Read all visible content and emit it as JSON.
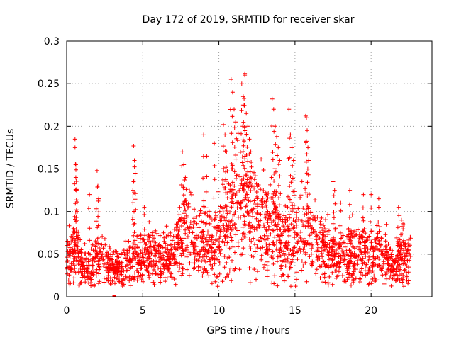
{
  "chart_data": {
    "type": "scatter",
    "title": "Day 172 of 2019, SRMTID for receiver skar",
    "xlabel": "GPS time / hours",
    "ylabel": "SRMTID / TECUs",
    "xlim": [
      0,
      24
    ],
    "ylim": [
      0,
      0.3
    ],
    "xticks": [
      0,
      5,
      10,
      15,
      20
    ],
    "xtick_labels": [
      "0",
      "5",
      "10",
      "15",
      "20"
    ],
    "yticks": [
      0,
      0.05,
      0.1,
      0.15,
      0.2,
      0.25,
      0.3
    ],
    "ytick_labels": [
      "0",
      "0.05",
      "0.1",
      "0.15",
      "0.2",
      "0.25",
      "0.3"
    ],
    "grid": true,
    "marker": "+",
    "color": "#ff0000",
    "series": [
      {
        "name": "skar",
        "trend": [
          [
            0.0,
            0.045
          ],
          [
            0.5,
            0.055
          ],
          [
            1.0,
            0.035
          ],
          [
            1.5,
            0.03
          ],
          [
            2.0,
            0.045
          ],
          [
            2.5,
            0.04
          ],
          [
            3.0,
            0.032
          ],
          [
            3.5,
            0.032
          ],
          [
            4.0,
            0.035
          ],
          [
            4.5,
            0.04
          ],
          [
            5.0,
            0.045
          ],
          [
            5.5,
            0.05
          ],
          [
            6.0,
            0.045
          ],
          [
            6.5,
            0.045
          ],
          [
            7.0,
            0.05
          ],
          [
            7.5,
            0.07
          ],
          [
            8.0,
            0.08
          ],
          [
            8.5,
            0.07
          ],
          [
            9.0,
            0.06
          ],
          [
            9.5,
            0.065
          ],
          [
            10.0,
            0.07
          ],
          [
            10.5,
            0.085
          ],
          [
            11.0,
            0.1
          ],
          [
            11.5,
            0.105
          ],
          [
            12.0,
            0.095
          ],
          [
            12.5,
            0.085
          ],
          [
            13.0,
            0.08
          ],
          [
            13.5,
            0.085
          ],
          [
            14.0,
            0.07
          ],
          [
            14.5,
            0.065
          ],
          [
            15.0,
            0.07
          ],
          [
            15.5,
            0.075
          ],
          [
            16.0,
            0.065
          ],
          [
            16.5,
            0.06
          ],
          [
            17.0,
            0.055
          ],
          [
            17.5,
            0.05
          ],
          [
            18.0,
            0.05
          ],
          [
            18.5,
            0.05
          ],
          [
            19.0,
            0.05
          ],
          [
            19.5,
            0.05
          ],
          [
            20.0,
            0.045
          ],
          [
            20.5,
            0.05
          ],
          [
            21.0,
            0.04
          ],
          [
            21.5,
            0.035
          ],
          [
            22.0,
            0.045
          ],
          [
            22.5,
            0.05
          ]
        ],
        "peaks": [
          [
            0.55,
            0.185
          ],
          [
            0.55,
            0.175
          ],
          [
            0.6,
            0.155
          ],
          [
            0.6,
            0.14
          ],
          [
            0.65,
            0.125
          ],
          [
            0.7,
            0.1
          ],
          [
            1.5,
            0.12
          ],
          [
            2.0,
            0.148
          ],
          [
            2.05,
            0.13
          ],
          [
            2.1,
            0.115
          ],
          [
            4.4,
            0.177
          ],
          [
            4.45,
            0.16
          ],
          [
            4.5,
            0.145
          ],
          [
            4.4,
            0.135
          ],
          [
            4.35,
            0.125
          ],
          [
            5.1,
            0.105
          ],
          [
            7.6,
            0.17
          ],
          [
            7.7,
            0.155
          ],
          [
            7.8,
            0.14
          ],
          [
            9.0,
            0.19
          ],
          [
            9.2,
            0.165
          ],
          [
            9.7,
            0.18
          ],
          [
            10.3,
            0.202
          ],
          [
            10.4,
            0.19
          ],
          [
            10.5,
            0.17
          ],
          [
            10.8,
            0.255
          ],
          [
            10.9,
            0.24
          ],
          [
            11.0,
            0.22
          ],
          [
            11.1,
            0.205
          ],
          [
            11.5,
            0.25
          ],
          [
            11.6,
            0.235
          ],
          [
            11.7,
            0.262
          ],
          [
            11.7,
            0.26
          ],
          [
            11.6,
            0.225
          ],
          [
            11.8,
            0.215
          ],
          [
            11.9,
            0.2
          ],
          [
            12.0,
            0.185
          ],
          [
            12.1,
            0.17
          ],
          [
            13.5,
            0.232
          ],
          [
            13.6,
            0.22
          ],
          [
            13.7,
            0.2
          ],
          [
            13.8,
            0.188
          ],
          [
            13.9,
            0.175
          ],
          [
            14.0,
            0.16
          ],
          [
            14.6,
            0.22
          ],
          [
            14.7,
            0.19
          ],
          [
            14.8,
            0.175
          ],
          [
            14.9,
            0.16
          ],
          [
            15.7,
            0.212
          ],
          [
            15.75,
            0.21
          ],
          [
            15.8,
            0.195
          ],
          [
            15.85,
            0.175
          ],
          [
            15.9,
            0.16
          ],
          [
            17.5,
            0.135
          ],
          [
            17.6,
            0.125
          ],
          [
            18.0,
            0.11
          ],
          [
            18.6,
            0.125
          ],
          [
            19.5,
            0.12
          ],
          [
            20.0,
            0.12
          ],
          [
            20.5,
            0.115
          ],
          [
            21.0,
            0.085
          ],
          [
            21.8,
            0.105
          ],
          [
            22.0,
            0.09
          ]
        ],
        "zeros": [
          [
            3.1,
            0.0
          ]
        ]
      }
    ]
  }
}
